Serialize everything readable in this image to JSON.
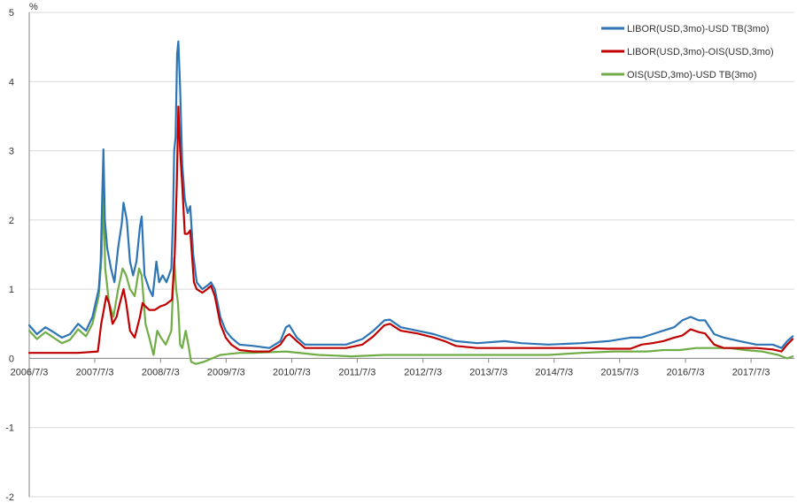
{
  "chart_data": {
    "type": "line",
    "ylabel": "%",
    "ylim": [
      -2,
      5
    ],
    "yticks": [
      5,
      4,
      3,
      2,
      1,
      0,
      -1,
      -2
    ],
    "xlim": [
      "2006-07-03",
      "2018-03-01"
    ],
    "xticks": [
      {
        "date": "2006-07-03",
        "label": "2006/7/3"
      },
      {
        "date": "2007-07-03",
        "label": "2007/7/3"
      },
      {
        "date": "2008-07-03",
        "label": "2008/7/3"
      },
      {
        "date": "2009-07-03",
        "label": "2009/7/3"
      },
      {
        "date": "2010-07-03",
        "label": "2010/7/3"
      },
      {
        "date": "2011-07-03",
        "label": "2011/7/3"
      },
      {
        "date": "2012-07-03",
        "label": "2012/7/3"
      },
      {
        "date": "2013-07-03",
        "label": "2013/7/3"
      },
      {
        "date": "2014-07-03",
        "label": "2014/7/3"
      },
      {
        "date": "2015-07-03",
        "label": "2015/7/3"
      },
      {
        "date": "2016-07-03",
        "label": "2016/7/3"
      },
      {
        "date": "2017-07-03",
        "label": "2017/7/3"
      }
    ],
    "grid": {
      "horizontal": true,
      "vertical": false
    },
    "legend_position": "top-right",
    "series": [
      {
        "name": "LIBOR(USD,3mo)-USD TB(3mo)",
        "color": "#2e75b6",
        "points": [
          [
            "2006-07-03",
            0.48
          ],
          [
            "2006-08-15",
            0.35
          ],
          [
            "2006-10-01",
            0.45
          ],
          [
            "2006-11-15",
            0.38
          ],
          [
            "2007-01-01",
            0.3
          ],
          [
            "2007-02-15",
            0.35
          ],
          [
            "2007-04-01",
            0.5
          ],
          [
            "2007-05-15",
            0.4
          ],
          [
            "2007-06-20",
            0.6
          ],
          [
            "2007-07-25",
            1.0
          ],
          [
            "2007-08-05",
            1.4
          ],
          [
            "2007-08-10",
            2.0
          ],
          [
            "2007-08-20",
            3.02
          ],
          [
            "2007-08-28",
            2.0
          ],
          [
            "2007-09-10",
            1.6
          ],
          [
            "2007-10-01",
            1.3
          ],
          [
            "2007-10-20",
            1.1
          ],
          [
            "2007-11-10",
            1.6
          ],
          [
            "2007-11-30",
            1.95
          ],
          [
            "2007-12-10",
            2.25
          ],
          [
            "2007-12-28",
            2.0
          ],
          [
            "2008-01-15",
            1.4
          ],
          [
            "2008-02-01",
            1.2
          ],
          [
            "2008-02-20",
            1.4
          ],
          [
            "2008-03-10",
            1.9
          ],
          [
            "2008-03-20",
            2.05
          ],
          [
            "2008-04-05",
            1.2
          ],
          [
            "2008-05-01",
            1.0
          ],
          [
            "2008-05-20",
            0.9
          ],
          [
            "2008-06-10",
            1.4
          ],
          [
            "2008-06-25",
            1.1
          ],
          [
            "2008-07-15",
            1.2
          ],
          [
            "2008-08-05",
            1.1
          ],
          [
            "2008-09-01",
            1.3
          ],
          [
            "2008-09-10",
            2.0
          ],
          [
            "2008-09-17",
            3.0
          ],
          [
            "2008-09-25",
            3.2
          ],
          [
            "2008-10-03",
            4.4
          ],
          [
            "2008-10-10",
            4.58
          ],
          [
            "2008-10-20",
            3.9
          ],
          [
            "2008-11-01",
            2.8
          ],
          [
            "2008-11-15",
            2.3
          ],
          [
            "2008-12-01",
            2.1
          ],
          [
            "2008-12-15",
            2.2
          ],
          [
            "2009-01-01",
            1.5
          ],
          [
            "2009-01-20",
            1.1
          ],
          [
            "2009-02-20",
            1.0
          ],
          [
            "2009-03-20",
            1.05
          ],
          [
            "2009-04-10",
            1.1
          ],
          [
            "2009-05-01",
            1.0
          ],
          [
            "2009-06-01",
            0.6
          ],
          [
            "2009-07-01",
            0.4
          ],
          [
            "2009-08-01",
            0.3
          ],
          [
            "2009-09-15",
            0.2
          ],
          [
            "2009-12-01",
            0.18
          ],
          [
            "2010-03-01",
            0.15
          ],
          [
            "2010-05-01",
            0.25
          ],
          [
            "2010-06-01",
            0.45
          ],
          [
            "2010-06-20",
            0.48
          ],
          [
            "2010-08-01",
            0.3
          ],
          [
            "2010-09-15",
            0.2
          ],
          [
            "2011-01-01",
            0.2
          ],
          [
            "2011-05-01",
            0.2
          ],
          [
            "2011-08-01",
            0.28
          ],
          [
            "2011-10-01",
            0.4
          ],
          [
            "2011-12-01",
            0.55
          ],
          [
            "2012-01-01",
            0.56
          ],
          [
            "2012-03-01",
            0.45
          ],
          [
            "2012-06-01",
            0.4
          ],
          [
            "2012-09-01",
            0.35
          ],
          [
            "2012-11-01",
            0.3
          ],
          [
            "2013-01-01",
            0.25
          ],
          [
            "2013-05-01",
            0.22
          ],
          [
            "2013-10-01",
            0.25
          ],
          [
            "2014-01-01",
            0.22
          ],
          [
            "2014-06-01",
            0.2
          ],
          [
            "2014-12-01",
            0.22
          ],
          [
            "2015-05-01",
            0.25
          ],
          [
            "2015-09-01",
            0.3
          ],
          [
            "2015-11-01",
            0.3
          ],
          [
            "2016-01-01",
            0.35
          ],
          [
            "2016-03-01",
            0.4
          ],
          [
            "2016-05-01",
            0.45
          ],
          [
            "2016-06-15",
            0.55
          ],
          [
            "2016-08-01",
            0.6
          ],
          [
            "2016-09-15",
            0.55
          ],
          [
            "2016-10-20",
            0.55
          ],
          [
            "2016-12-10",
            0.35
          ],
          [
            "2017-02-01",
            0.3
          ],
          [
            "2017-05-01",
            0.25
          ],
          [
            "2017-08-01",
            0.2
          ],
          [
            "2017-11-01",
            0.2
          ],
          [
            "2017-12-20",
            0.15
          ],
          [
            "2018-01-20",
            0.25
          ],
          [
            "2018-02-20",
            0.32
          ]
        ]
      },
      {
        "name": "LIBOR(USD,3mo)-OIS(USD,3mo)",
        "color": "#c00000",
        "points": [
          [
            "2006-07-03",
            0.08
          ],
          [
            "2006-10-01",
            0.08
          ],
          [
            "2007-01-01",
            0.08
          ],
          [
            "2007-04-01",
            0.08
          ],
          [
            "2007-07-20",
            0.1
          ],
          [
            "2007-08-08",
            0.5
          ],
          [
            "2007-08-22",
            0.7
          ],
          [
            "2007-09-05",
            0.9
          ],
          [
            "2007-09-20",
            0.8
          ],
          [
            "2007-10-10",
            0.5
          ],
          [
            "2007-11-01",
            0.6
          ],
          [
            "2007-11-20",
            0.8
          ],
          [
            "2007-12-10",
            1.0
          ],
          [
            "2007-12-25",
            0.8
          ],
          [
            "2008-01-15",
            0.4
          ],
          [
            "2008-02-10",
            0.3
          ],
          [
            "2008-03-10",
            0.6
          ],
          [
            "2008-03-25",
            0.8
          ],
          [
            "2008-04-10",
            0.75
          ],
          [
            "2008-05-01",
            0.7
          ],
          [
            "2008-06-01",
            0.7
          ],
          [
            "2008-07-01",
            0.75
          ],
          [
            "2008-08-01",
            0.78
          ],
          [
            "2008-09-05",
            0.85
          ],
          [
            "2008-09-20",
            1.5
          ],
          [
            "2008-10-01",
            2.5
          ],
          [
            "2008-10-10",
            3.64
          ],
          [
            "2008-10-20",
            3.0
          ],
          [
            "2008-11-01",
            2.5
          ],
          [
            "2008-11-15",
            1.8
          ],
          [
            "2008-12-01",
            1.8
          ],
          [
            "2008-12-15",
            1.85
          ],
          [
            "2009-01-05",
            1.1
          ],
          [
            "2009-01-20",
            1.0
          ],
          [
            "2009-02-20",
            0.95
          ],
          [
            "2009-03-20",
            1.0
          ],
          [
            "2009-04-10",
            1.05
          ],
          [
            "2009-05-01",
            0.9
          ],
          [
            "2009-06-01",
            0.5
          ],
          [
            "2009-07-01",
            0.3
          ],
          [
            "2009-08-01",
            0.2
          ],
          [
            "2009-09-15",
            0.12
          ],
          [
            "2009-12-01",
            0.1
          ],
          [
            "2010-03-01",
            0.1
          ],
          [
            "2010-05-01",
            0.2
          ],
          [
            "2010-06-01",
            0.32
          ],
          [
            "2010-06-20",
            0.35
          ],
          [
            "2010-08-01",
            0.25
          ],
          [
            "2010-09-15",
            0.15
          ],
          [
            "2011-01-01",
            0.15
          ],
          [
            "2011-05-01",
            0.15
          ],
          [
            "2011-08-01",
            0.2
          ],
          [
            "2011-10-01",
            0.32
          ],
          [
            "2011-12-01",
            0.48
          ],
          [
            "2012-01-01",
            0.5
          ],
          [
            "2012-03-01",
            0.4
          ],
          [
            "2012-06-01",
            0.36
          ],
          [
            "2012-09-01",
            0.3
          ],
          [
            "2012-11-01",
            0.25
          ],
          [
            "2013-01-01",
            0.18
          ],
          [
            "2013-05-01",
            0.15
          ],
          [
            "2013-10-01",
            0.15
          ],
          [
            "2014-01-01",
            0.15
          ],
          [
            "2014-06-01",
            0.15
          ],
          [
            "2014-12-01",
            0.15
          ],
          [
            "2015-05-01",
            0.14
          ],
          [
            "2015-09-01",
            0.14
          ],
          [
            "2015-11-01",
            0.2
          ],
          [
            "2016-01-01",
            0.22
          ],
          [
            "2016-03-01",
            0.25
          ],
          [
            "2016-05-01",
            0.3
          ],
          [
            "2016-06-15",
            0.33
          ],
          [
            "2016-08-01",
            0.42
          ],
          [
            "2016-09-15",
            0.38
          ],
          [
            "2016-10-20",
            0.36
          ],
          [
            "2016-12-10",
            0.2
          ],
          [
            "2017-02-01",
            0.15
          ],
          [
            "2017-05-01",
            0.15
          ],
          [
            "2017-08-01",
            0.15
          ],
          [
            "2017-11-01",
            0.13
          ],
          [
            "2017-12-20",
            0.1
          ],
          [
            "2018-01-20",
            0.2
          ],
          [
            "2018-02-20",
            0.28
          ]
        ]
      },
      {
        "name": "OIS(USD,3mo)-USD TB(3mo)",
        "color": "#70ad47",
        "points": [
          [
            "2006-07-03",
            0.4
          ],
          [
            "2006-08-15",
            0.28
          ],
          [
            "2006-10-01",
            0.38
          ],
          [
            "2006-11-15",
            0.3
          ],
          [
            "2007-01-01",
            0.22
          ],
          [
            "2007-02-15",
            0.27
          ],
          [
            "2007-04-01",
            0.42
          ],
          [
            "2007-05-15",
            0.32
          ],
          [
            "2007-06-20",
            0.5
          ],
          [
            "2007-07-25",
            0.9
          ],
          [
            "2007-08-10",
            1.5
          ],
          [
            "2007-08-20",
            2.38
          ],
          [
            "2007-08-30",
            1.3
          ],
          [
            "2007-09-20",
            0.8
          ],
          [
            "2007-10-15",
            0.6
          ],
          [
            "2007-11-10",
            1.0
          ],
          [
            "2007-12-05",
            1.3
          ],
          [
            "2007-12-25",
            1.2
          ],
          [
            "2008-01-15",
            1.0
          ],
          [
            "2008-02-10",
            0.9
          ],
          [
            "2008-03-05",
            1.3
          ],
          [
            "2008-03-20",
            1.2
          ],
          [
            "2008-04-10",
            0.5
          ],
          [
            "2008-05-01",
            0.3
          ],
          [
            "2008-05-25",
            0.05
          ],
          [
            "2008-06-15",
            0.4
          ],
          [
            "2008-07-05",
            0.3
          ],
          [
            "2008-08-01",
            0.2
          ],
          [
            "2008-09-01",
            0.4
          ],
          [
            "2008-09-17",
            1.45
          ],
          [
            "2008-09-28",
            1.0
          ],
          [
            "2008-10-08",
            0.8
          ],
          [
            "2008-10-20",
            0.2
          ],
          [
            "2008-11-01",
            0.15
          ],
          [
            "2008-11-20",
            0.4
          ],
          [
            "2008-12-05",
            0.2
          ],
          [
            "2008-12-20",
            -0.05
          ],
          [
            "2009-01-15",
            -0.08
          ],
          [
            "2009-03-01",
            -0.05
          ],
          [
            "2009-06-01",
            0.05
          ],
          [
            "2009-09-15",
            0.08
          ],
          [
            "2009-12-01",
            0.08
          ],
          [
            "2010-06-01",
            0.1
          ],
          [
            "2010-12-01",
            0.05
          ],
          [
            "2011-06-01",
            0.03
          ],
          [
            "2011-12-01",
            0.05
          ],
          [
            "2012-06-01",
            0.05
          ],
          [
            "2012-12-01",
            0.05
          ],
          [
            "2013-06-01",
            0.05
          ],
          [
            "2013-12-01",
            0.05
          ],
          [
            "2014-06-01",
            0.05
          ],
          [
            "2014-12-01",
            0.08
          ],
          [
            "2015-06-01",
            0.1
          ],
          [
            "2015-12-01",
            0.1
          ],
          [
            "2016-03-01",
            0.12
          ],
          [
            "2016-06-01",
            0.12
          ],
          [
            "2016-09-01",
            0.15
          ],
          [
            "2016-12-01",
            0.15
          ],
          [
            "2017-03-01",
            0.15
          ],
          [
            "2017-06-01",
            0.12
          ],
          [
            "2017-09-01",
            0.1
          ],
          [
            "2017-12-01",
            0.05
          ],
          [
            "2018-01-20",
            0.0
          ],
          [
            "2018-02-20",
            0.03
          ]
        ]
      }
    ]
  }
}
